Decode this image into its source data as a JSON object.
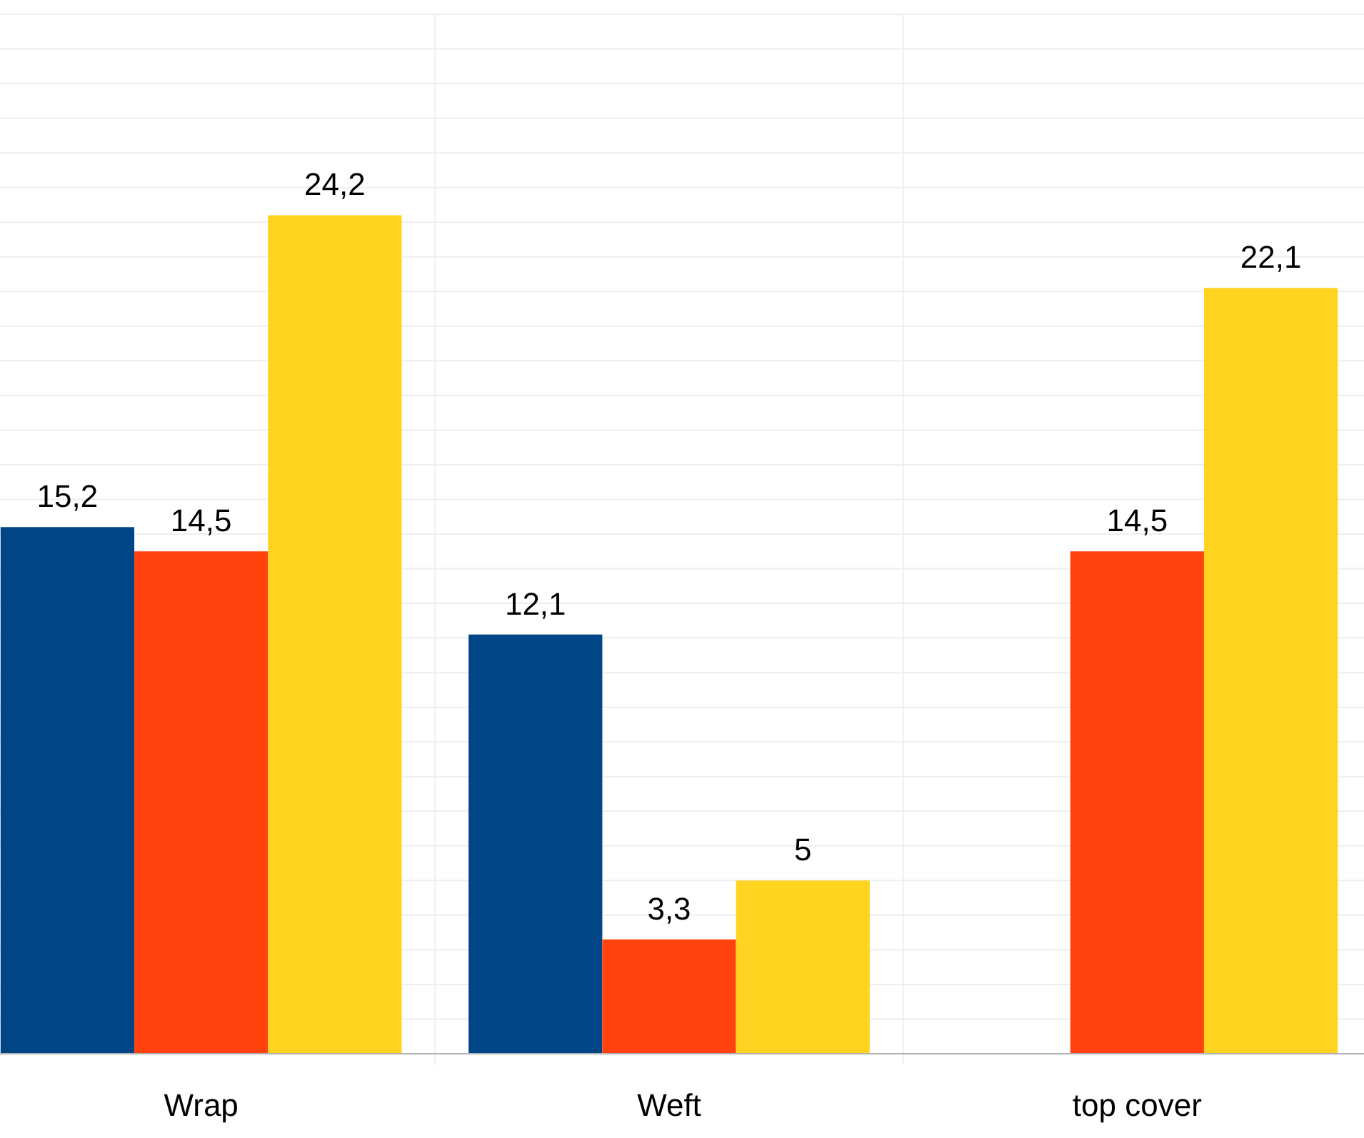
{
  "chart_data": {
    "type": "bar",
    "categories": [
      "Wrap",
      "Weft",
      "top cover"
    ],
    "series": [
      {
        "color": "#004586",
        "values": [
          15.2,
          12.1,
          null
        ],
        "value_labels": [
          "15,2",
          "12,1",
          null
        ]
      },
      {
        "color": "#ff420e",
        "values": [
          14.5,
          3.3,
          14.5
        ],
        "value_labels": [
          "14,5",
          "3,3",
          "14,5"
        ]
      },
      {
        "color": "#ffd320",
        "values": [
          24.2,
          5,
          22.1
        ],
        "value_labels": [
          "24,2",
          "5",
          "22,1"
        ]
      }
    ],
    "ylim": [
      0,
      30
    ],
    "yticks": [
      {
        "value": 0,
        "label": null
      },
      {
        "value": 1,
        "label": null
      },
      {
        "value": 2,
        "label": null
      },
      {
        "value": 3,
        "label": null
      },
      {
        "value": 4,
        "label": null
      },
      {
        "value": 5,
        "label": null
      },
      {
        "value": 6,
        "label": null
      },
      {
        "value": 7,
        "label": null
      },
      {
        "value": 8,
        "label": null
      },
      {
        "value": 9,
        "label": null
      },
      {
        "value": 10,
        "label": null
      },
      {
        "value": 11,
        "label": null
      },
      {
        "value": 12,
        "label": null
      },
      {
        "value": 13,
        "label": null
      },
      {
        "value": 14,
        "label": null
      },
      {
        "value": 15,
        "label": null
      },
      {
        "value": 16,
        "label": null
      },
      {
        "value": 17,
        "label": null
      },
      {
        "value": 18,
        "label": null
      },
      {
        "value": 19,
        "label": null
      },
      {
        "value": 20,
        "label": null
      },
      {
        "value": 21,
        "label": null
      },
      {
        "value": 22,
        "label": null
      },
      {
        "value": 23,
        "label": null
      },
      {
        "value": 24,
        "label": null
      },
      {
        "value": 25,
        "label": null
      },
      {
        "value": 26,
        "label": null
      },
      {
        "value": 27,
        "label": null
      },
      {
        "value": 28,
        "label": null
      },
      {
        "value": 29,
        "label": null
      },
      {
        "value": 30,
        "label": null
      }
    ],
    "grid": true,
    "tick_labels": "x"
  }
}
